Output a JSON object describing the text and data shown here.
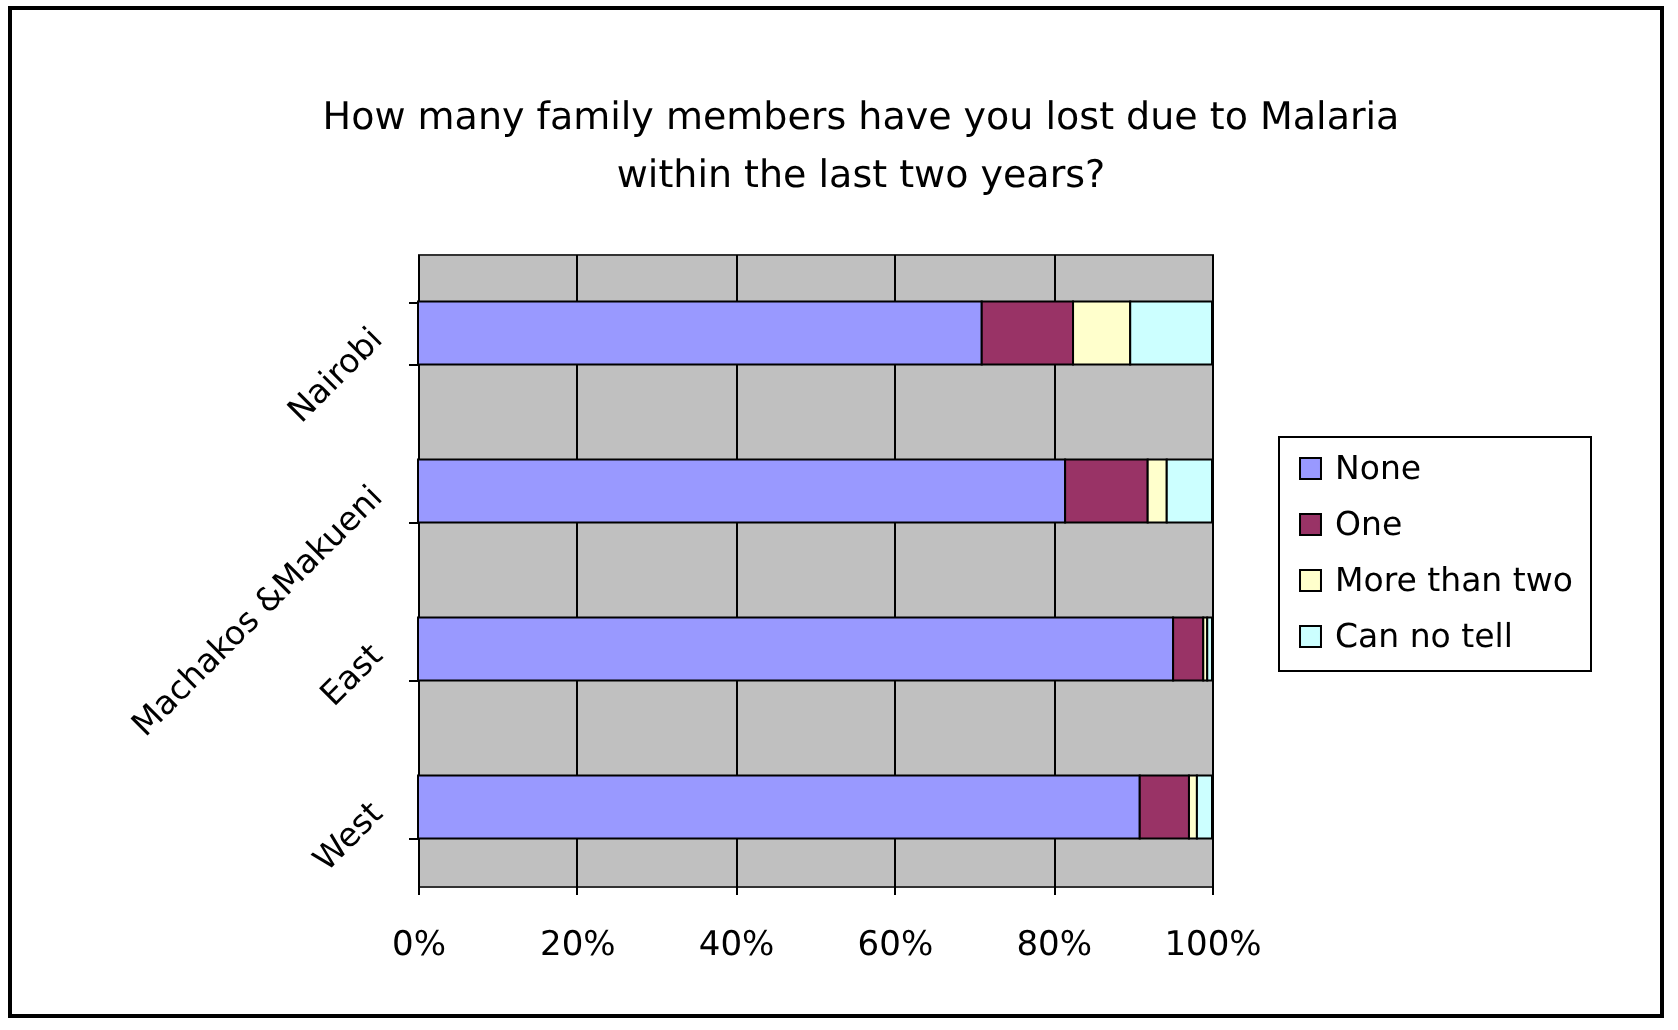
{
  "chart_data": {
    "type": "bar",
    "orientation": "horizontal",
    "stacked": true,
    "title": "How many family members have you lost due to Malaria within the last two years?",
    "categories": [
      "Nairobi",
      "Machakos &Makueni",
      "East",
      "West"
    ],
    "series": [
      {
        "name": "None",
        "color": "#9999ff",
        "values": [
          71,
          81.5,
          95.1,
          90.9
        ]
      },
      {
        "name": "One",
        "color": "#993366",
        "values": [
          11.5,
          10.4,
          3.8,
          6.2
        ]
      },
      {
        "name": "More than two",
        "color": "#ffffcc",
        "values": [
          7.2,
          2.4,
          0.5,
          1.0
        ]
      },
      {
        "name": "Can no tell",
        "color": "#ccffff",
        "values": [
          10.3,
          5.7,
          0.6,
          1.9
        ]
      }
    ],
    "xlim": [
      0,
      100
    ],
    "xticks": [
      {
        "value": 0,
        "label": "0%"
      },
      {
        "value": 20,
        "label": "20%"
      },
      {
        "value": 40,
        "label": "40%"
      },
      {
        "value": 60,
        "label": "60%"
      },
      {
        "value": 80,
        "label": "80%"
      },
      {
        "value": 100,
        "label": "100%"
      }
    ],
    "grid": "x",
    "legend": "right"
  }
}
